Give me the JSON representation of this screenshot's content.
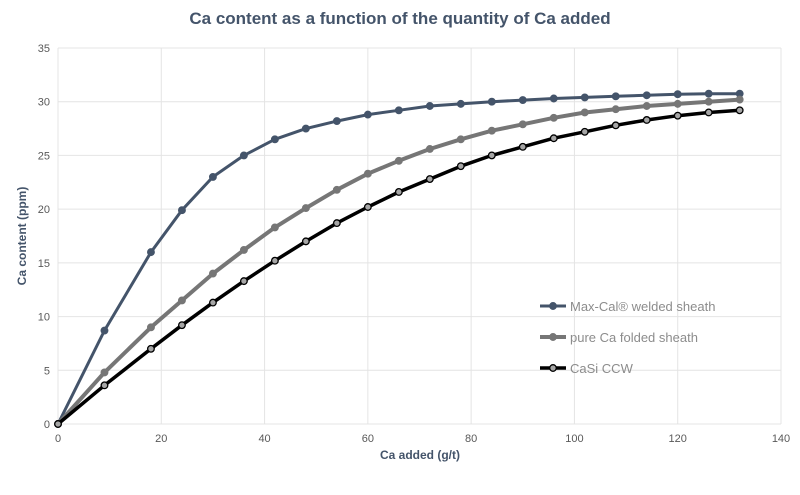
{
  "chart_data": {
    "type": "line",
    "title": "Ca content as a function of the quantity of Ca added",
    "xlabel": "Ca added (g/t)",
    "ylabel": "Ca content (ppm)",
    "xlim": [
      0,
      140
    ],
    "ylim": [
      0,
      35
    ],
    "x_ticks": [
      0,
      20,
      40,
      60,
      80,
      100,
      120,
      140
    ],
    "y_ticks": [
      0,
      5,
      10,
      15,
      20,
      25,
      30,
      35
    ],
    "grid": true,
    "legend_position": "lower-right",
    "x": [
      0,
      9,
      18,
      24,
      30,
      36,
      42,
      48,
      54,
      60,
      66,
      72,
      78,
      84,
      90,
      96,
      102,
      108,
      114,
      120,
      126,
      132
    ],
    "series": [
      {
        "name": "Max-Cal® welded sheath",
        "color": "#44546a",
        "marker_fill": "#44546a",
        "line_width": 3,
        "values": [
          0,
          8.7,
          16.0,
          19.9,
          23.0,
          25.0,
          26.5,
          27.5,
          28.2,
          28.8,
          29.2,
          29.6,
          29.8,
          30.0,
          30.15,
          30.3,
          30.4,
          30.5,
          30.6,
          30.7,
          30.75,
          30.75
        ]
      },
      {
        "name": "pure Ca folded sheath",
        "color": "#767676",
        "marker_fill": "#767676",
        "line_width": 4,
        "values": [
          0,
          4.8,
          9.0,
          11.5,
          14.0,
          16.2,
          18.3,
          20.1,
          21.8,
          23.3,
          24.5,
          25.6,
          26.5,
          27.3,
          27.9,
          28.5,
          29.0,
          29.3,
          29.6,
          29.8,
          30.0,
          30.2
        ]
      },
      {
        "name": "CaSi CCW",
        "color": "#000000",
        "marker_fill": "#a6a6a6",
        "line_width": 3.5,
        "values": [
          0,
          3.6,
          7.0,
          9.2,
          11.3,
          13.3,
          15.2,
          17.0,
          18.7,
          20.2,
          21.6,
          22.8,
          24.0,
          25.0,
          25.8,
          26.6,
          27.2,
          27.8,
          28.3,
          28.7,
          29.0,
          29.2
        ]
      }
    ]
  }
}
